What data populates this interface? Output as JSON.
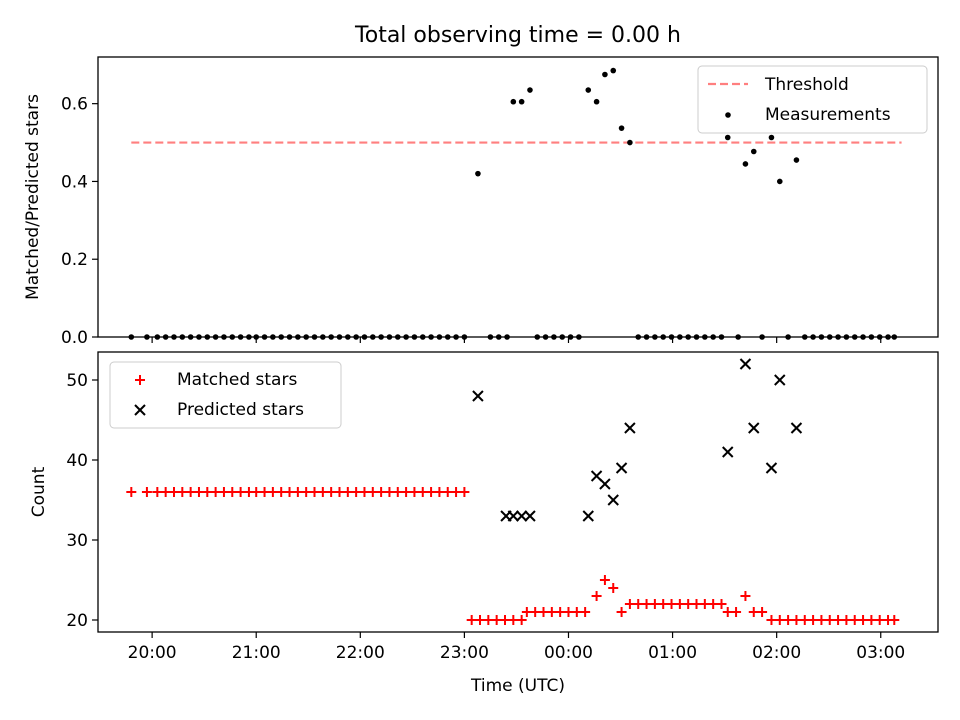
{
  "title": "Total observing time = 0.00 h",
  "chart_data": [
    {
      "type": "scatter",
      "ylabel": "Matched/Predicted stars",
      "ylim": [
        0,
        0.72
      ],
      "yticks": [
        0.0,
        0.2,
        0.4,
        0.6
      ],
      "ytick_labels": [
        "0.0",
        "0.2",
        "0.4",
        "0.6"
      ],
      "xlim": [
        -0.52,
        7.55
      ],
      "legend_position": "top-right",
      "grid": false,
      "threshold": {
        "name": "Threshold",
        "value": 0.5,
        "x_range": [
          -0.2,
          7.2
        ],
        "color": "#ff7f7f",
        "style": "dashed"
      },
      "series": [
        {
          "name": "Measurements",
          "marker": "dot",
          "color": "#000000",
          "points": [
            [
              -0.2,
              0
            ],
            [
              -0.05,
              0
            ],
            [
              0.05,
              0
            ],
            [
              0.13,
              0
            ],
            [
              0.21,
              0
            ],
            [
              0.29,
              0
            ],
            [
              0.37,
              0
            ],
            [
              0.45,
              0
            ],
            [
              0.53,
              0
            ],
            [
              0.61,
              0
            ],
            [
              0.69,
              0
            ],
            [
              0.77,
              0
            ],
            [
              0.85,
              0
            ],
            [
              0.93,
              0
            ],
            [
              1.0,
              0
            ],
            [
              1.08,
              0
            ],
            [
              1.16,
              0
            ],
            [
              1.24,
              0
            ],
            [
              1.32,
              0
            ],
            [
              1.4,
              0
            ],
            [
              1.48,
              0
            ],
            [
              1.56,
              0
            ],
            [
              1.64,
              0
            ],
            [
              1.72,
              0
            ],
            [
              1.8,
              0
            ],
            [
              1.88,
              0
            ],
            [
              1.96,
              0
            ],
            [
              2.04,
              0
            ],
            [
              2.12,
              0
            ],
            [
              2.2,
              0
            ],
            [
              2.28,
              0
            ],
            [
              2.36,
              0
            ],
            [
              2.44,
              0
            ],
            [
              2.52,
              0
            ],
            [
              2.6,
              0
            ],
            [
              2.68,
              0
            ],
            [
              2.76,
              0
            ],
            [
              2.84,
              0
            ],
            [
              2.92,
              0
            ],
            [
              3.0,
              0
            ],
            [
              3.13,
              0.42
            ],
            [
              3.25,
              0
            ],
            [
              3.33,
              0
            ],
            [
              3.41,
              0
            ],
            [
              3.47,
              0.605
            ],
            [
              3.55,
              0.605
            ],
            [
              3.63,
              0.635
            ],
            [
              3.7,
              0
            ],
            [
              3.78,
              0
            ],
            [
              3.86,
              0
            ],
            [
              3.94,
              0
            ],
            [
              4.02,
              0
            ],
            [
              4.1,
              0
            ],
            [
              4.19,
              0.635
            ],
            [
              4.27,
              0.605
            ],
            [
              4.35,
              0.675
            ],
            [
              4.43,
              0.685
            ],
            [
              4.51,
              0.537
            ],
            [
              4.59,
              0.5
            ],
            [
              4.67,
              0
            ],
            [
              4.75,
              0
            ],
            [
              4.83,
              0
            ],
            [
              4.91,
              0
            ],
            [
              4.99,
              0
            ],
            [
              5.07,
              0
            ],
            [
              5.15,
              0
            ],
            [
              5.23,
              0
            ],
            [
              5.31,
              0
            ],
            [
              5.39,
              0
            ],
            [
              5.47,
              0
            ],
            [
              5.53,
              0.513
            ],
            [
              5.63,
              0
            ],
            [
              5.7,
              0.445
            ],
            [
              5.78,
              0.477
            ],
            [
              5.86,
              0
            ],
            [
              5.95,
              0.513
            ],
            [
              6.03,
              0.4
            ],
            [
              6.11,
              0
            ],
            [
              6.19,
              0.455
            ],
            [
              6.27,
              0
            ],
            [
              6.35,
              0
            ],
            [
              6.43,
              0
            ],
            [
              6.51,
              0
            ],
            [
              6.59,
              0
            ],
            [
              6.67,
              0
            ],
            [
              6.75,
              0
            ],
            [
              6.83,
              0
            ],
            [
              6.91,
              0
            ],
            [
              6.99,
              0
            ],
            [
              7.07,
              0
            ],
            [
              7.13,
              0
            ]
          ]
        }
      ]
    },
    {
      "type": "scatter",
      "ylabel": "Count",
      "xlabel": "Time (UTC)",
      "ylim": [
        18.5,
        53.5
      ],
      "yticks": [
        20,
        30,
        40,
        50
      ],
      "ytick_labels": [
        "20",
        "30",
        "40",
        "50"
      ],
      "xlim": [
        -0.52,
        7.55
      ],
      "xticks": [
        0,
        1,
        2,
        3,
        4,
        5,
        6,
        7
      ],
      "xtick_labels": [
        "20:00",
        "21:00",
        "22:00",
        "23:00",
        "00:00",
        "01:00",
        "02:00",
        "03:00"
      ],
      "legend_position": "top-left",
      "grid": false,
      "series": [
        {
          "name": "Matched stars",
          "marker": "plus",
          "color": "#ff0000",
          "points": [
            [
              -0.2,
              36
            ],
            [
              -0.05,
              36
            ],
            [
              0.05,
              36
            ],
            [
              0.13,
              36
            ],
            [
              0.21,
              36
            ],
            [
              0.29,
              36
            ],
            [
              0.37,
              36
            ],
            [
              0.45,
              36
            ],
            [
              0.53,
              36
            ],
            [
              0.61,
              36
            ],
            [
              0.69,
              36
            ],
            [
              0.77,
              36
            ],
            [
              0.85,
              36
            ],
            [
              0.93,
              36
            ],
            [
              1.0,
              36
            ],
            [
              1.08,
              36
            ],
            [
              1.16,
              36
            ],
            [
              1.24,
              36
            ],
            [
              1.32,
              36
            ],
            [
              1.4,
              36
            ],
            [
              1.48,
              36
            ],
            [
              1.56,
              36
            ],
            [
              1.64,
              36
            ],
            [
              1.72,
              36
            ],
            [
              1.8,
              36
            ],
            [
              1.88,
              36
            ],
            [
              1.96,
              36
            ],
            [
              2.04,
              36
            ],
            [
              2.12,
              36
            ],
            [
              2.2,
              36
            ],
            [
              2.28,
              36
            ],
            [
              2.36,
              36
            ],
            [
              2.44,
              36
            ],
            [
              2.52,
              36
            ],
            [
              2.6,
              36
            ],
            [
              2.68,
              36
            ],
            [
              2.76,
              36
            ],
            [
              2.84,
              36
            ],
            [
              2.92,
              36
            ],
            [
              3.0,
              36
            ],
            [
              3.07,
              20
            ],
            [
              3.15,
              20
            ],
            [
              3.23,
              20
            ],
            [
              3.31,
              20
            ],
            [
              3.39,
              20
            ],
            [
              3.47,
              20
            ],
            [
              3.55,
              20
            ],
            [
              3.6,
              21
            ],
            [
              3.68,
              21
            ],
            [
              3.76,
              21
            ],
            [
              3.84,
              21
            ],
            [
              3.92,
              21
            ],
            [
              4.0,
              21
            ],
            [
              4.08,
              21
            ],
            [
              4.16,
              21
            ],
            [
              4.27,
              23
            ],
            [
              4.35,
              25
            ],
            [
              4.43,
              24
            ],
            [
              4.51,
              21
            ],
            [
              4.59,
              22
            ],
            [
              4.67,
              22
            ],
            [
              4.75,
              22
            ],
            [
              4.83,
              22
            ],
            [
              4.91,
              22
            ],
            [
              4.99,
              22
            ],
            [
              5.07,
              22
            ],
            [
              5.15,
              22
            ],
            [
              5.23,
              22
            ],
            [
              5.31,
              22
            ],
            [
              5.39,
              22
            ],
            [
              5.47,
              22
            ],
            [
              5.53,
              21
            ],
            [
              5.61,
              21
            ],
            [
              5.7,
              23
            ],
            [
              5.78,
              21
            ],
            [
              5.86,
              21
            ],
            [
              5.95,
              20
            ],
            [
              6.03,
              20
            ],
            [
              6.11,
              20
            ],
            [
              6.19,
              20
            ],
            [
              6.27,
              20
            ],
            [
              6.35,
              20
            ],
            [
              6.43,
              20
            ],
            [
              6.51,
              20
            ],
            [
              6.59,
              20
            ],
            [
              6.67,
              20
            ],
            [
              6.75,
              20
            ],
            [
              6.83,
              20
            ],
            [
              6.91,
              20
            ],
            [
              6.99,
              20
            ],
            [
              7.07,
              20
            ],
            [
              7.13,
              20
            ]
          ]
        },
        {
          "name": "Predicted stars",
          "marker": "x",
          "color": "#000000",
          "points": [
            [
              3.13,
              48
            ],
            [
              3.4,
              33
            ],
            [
              3.47,
              33
            ],
            [
              3.55,
              33
            ],
            [
              3.63,
              33
            ],
            [
              4.19,
              33
            ],
            [
              4.27,
              38
            ],
            [
              4.35,
              37
            ],
            [
              4.43,
              35
            ],
            [
              4.51,
              39
            ],
            [
              4.59,
              44
            ],
            [
              5.53,
              41
            ],
            [
              5.7,
              52
            ],
            [
              5.78,
              44
            ],
            [
              5.95,
              39
            ],
            [
              6.03,
              50
            ],
            [
              6.19,
              44
            ]
          ]
        }
      ]
    }
  ]
}
